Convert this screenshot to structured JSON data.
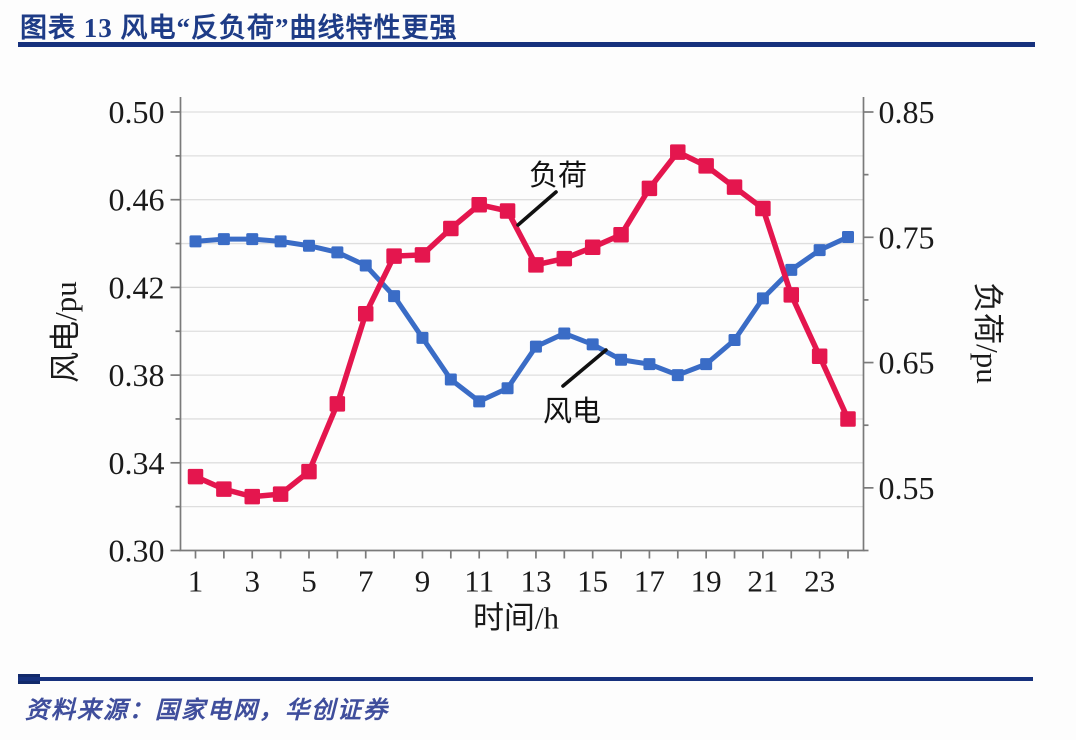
{
  "header": {
    "title": "图表 13  风电“反负荷”曲线特性更强"
  },
  "footer": {
    "source": "资料来源：国家电网，华创证券"
  },
  "chart_data": {
    "type": "line",
    "x": [
      1,
      2,
      3,
      4,
      5,
      6,
      7,
      8,
      9,
      10,
      11,
      12,
      13,
      14,
      15,
      16,
      17,
      18,
      19,
      20,
      21,
      22,
      23,
      24
    ],
    "series": [
      {
        "name": "风电",
        "axis": "left",
        "color": "#3a6cc6",
        "values": [
          0.441,
          0.442,
          0.442,
          0.441,
          0.439,
          0.436,
          0.43,
          0.416,
          0.397,
          0.378,
          0.368,
          0.374,
          0.393,
          0.399,
          0.394,
          0.387,
          0.385,
          0.38,
          0.385,
          0.396,
          0.415,
          0.428,
          0.437,
          0.443
        ]
      },
      {
        "name": "负荷",
        "axis": "right",
        "color": "#e4164e",
        "values": [
          0.559,
          0.549,
          0.543,
          0.545,
          0.563,
          0.617,
          0.689,
          0.735,
          0.736,
          0.757,
          0.776,
          0.771,
          0.728,
          0.733,
          0.742,
          0.752,
          0.789,
          0.818,
          0.807,
          0.79,
          0.773,
          0.704,
          0.655,
          0.605
        ]
      }
    ],
    "axes": {
      "x": {
        "title": "时间/h",
        "labels": [
          {
            "v": 1,
            "t": "1"
          },
          {
            "v": 3,
            "t": "3"
          },
          {
            "v": 5,
            "t": "5"
          },
          {
            "v": 7,
            "t": "7"
          },
          {
            "v": 9,
            "t": "9"
          },
          {
            "v": 11,
            "t": "11"
          },
          {
            "v": 13,
            "t": "13"
          },
          {
            "v": 15,
            "t": "15"
          },
          {
            "v": 17,
            "t": "17"
          },
          {
            "v": 19,
            "t": "19"
          },
          {
            "v": 21,
            "t": "21"
          },
          {
            "v": 23,
            "t": "23"
          }
        ]
      },
      "left": {
        "title": "风电/pu",
        "min": 0.3,
        "max": 0.5,
        "major": [
          {
            "v": 0.5,
            "t": "0.50"
          },
          {
            "v": 0.46,
            "t": "0.46"
          },
          {
            "v": 0.42,
            "t": "0.42"
          },
          {
            "v": 0.38,
            "t": "0.38"
          },
          {
            "v": 0.34,
            "t": "0.34"
          },
          {
            "v": 0.3,
            "t": "0.30"
          }
        ],
        "minor": [
          0.32,
          0.36,
          0.4,
          0.44,
          0.48
        ]
      },
      "right": {
        "title": "负荷/pu",
        "min": 0.5,
        "max": 0.85,
        "major": [
          {
            "v": 0.85,
            "t": "0.85"
          },
          {
            "v": 0.75,
            "t": "0.75"
          },
          {
            "v": 0.65,
            "t": "0.65"
          },
          {
            "v": 0.55,
            "t": "0.55"
          }
        ],
        "minor": [
          0.5,
          0.6,
          0.7,
          0.8
        ]
      }
    },
    "gridlines": [
      0.32,
      0.34,
      0.36,
      0.38,
      0.4,
      0.42,
      0.44,
      0.46,
      0.48,
      0.5
    ],
    "legend": "none",
    "annotations": [
      {
        "text": "负荷",
        "points_to": "load-series"
      },
      {
        "text": "风电",
        "points_to": "wind-series"
      }
    ],
    "style": {
      "grid_color": "#dedede",
      "axis_color": "#7a7a7a",
      "tick_label_color": "#1a1a1a",
      "annotation_color": "#111111"
    }
  }
}
